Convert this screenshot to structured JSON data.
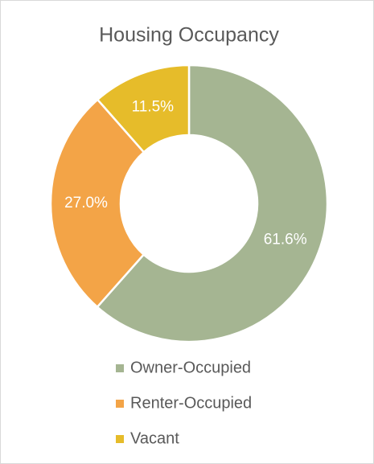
{
  "chart_data": {
    "type": "donut",
    "title": "Housing Occupancy",
    "categories": [
      "Owner-Occupied",
      "Renter-Occupied",
      "Vacant"
    ],
    "values": [
      61.6,
      27.0,
      11.5
    ],
    "value_labels": [
      "61.6%",
      "27.0%",
      "11.5%"
    ],
    "colors": [
      "#a5b592",
      "#f3a447",
      "#e6bc2a"
    ],
    "legend": "bottom"
  }
}
